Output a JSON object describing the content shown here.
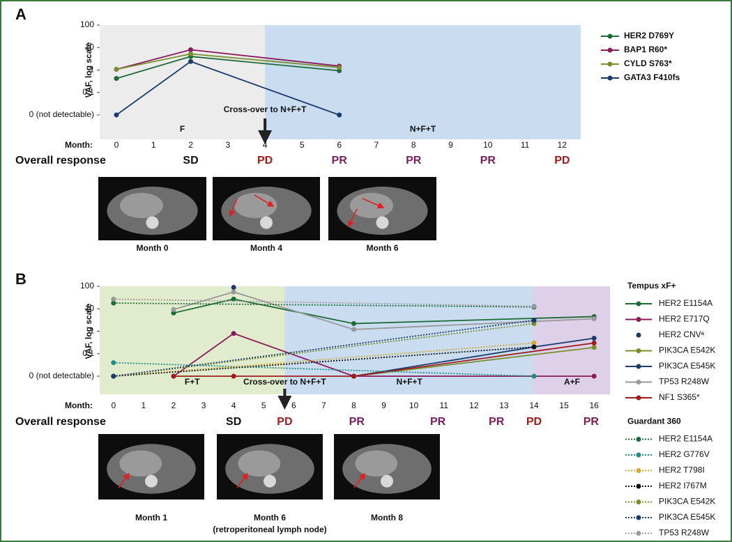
{
  "chart_data": [
    {
      "type": "line",
      "panel": "A",
      "y_label": "VAF, log scale",
      "x_label": "Month:",
      "response_label": "Overall response",
      "log_scale": true,
      "xlim": [
        -0.45,
        12.5
      ],
      "xticks": [
        0,
        1,
        2,
        3,
        4,
        5,
        6,
        7,
        8,
        9,
        10,
        11,
        12
      ],
      "ylim": [
        0,
        100
      ],
      "yticks": [
        100,
        10,
        1,
        0.1,
        {
          "value": 0,
          "label": "0 (not detectable)"
        }
      ],
      "phases": [
        {
          "label": "F",
          "start": -0.45,
          "end": 4,
          "color": "#ececec"
        },
        {
          "label": "N+F+T",
          "start": 4,
          "end": 12.5,
          "color": "#c9dcf0"
        }
      ],
      "crossover": {
        "label": "Cross-over to N+F+T",
        "x": 4
      },
      "responses": [
        {
          "label": "SD",
          "x": 2,
          "color": "#111111"
        },
        {
          "label": "PD",
          "x": 4,
          "color": "#a01c1c"
        },
        {
          "label": "PR",
          "x": 6,
          "color": "#7b1f5c"
        },
        {
          "label": "PR",
          "x": 8,
          "color": "#7b1f5c"
        },
        {
          "label": "PR",
          "x": 10,
          "color": "#7b1f5c"
        },
        {
          "label": "PD",
          "x": 12,
          "color": "#a01c1c"
        }
      ],
      "series_groups": [
        {
          "dash": false,
          "series": [
            {
              "name": "HER2 D769Y",
              "color": "#1d6a36",
              "x": [
                0,
                2,
                6
              ],
              "values": [
                0.42,
                4,
                0.93
              ]
            },
            {
              "name": "BAP1 R60*",
              "color": "#8b1a5a",
              "x": [
                0,
                2,
                6
              ],
              "values": [
                1.07,
                8,
                1.5
              ]
            },
            {
              "name": "CYLD S763*",
              "color": "#7a8f2a",
              "x": [
                0,
                2,
                6
              ],
              "values": [
                1.07,
                5.2,
                1.3
              ]
            },
            {
              "name": "GATA3 F410fs",
              "color": "#1a3a6b",
              "x": [
                0,
                2,
                6
              ],
              "values": [
                0,
                2.4,
                0
              ]
            }
          ]
        }
      ],
      "images": [
        {
          "caption": "Month 0"
        },
        {
          "caption": "Month 4"
        },
        {
          "caption": "Month 6"
        }
      ]
    },
    {
      "type": "line",
      "panel": "B",
      "y_label": "VAF, log scale",
      "x_label": "Month:",
      "response_label": "Overall response",
      "log_scale": true,
      "xlim": [
        -0.46,
        16.53
      ],
      "xticks": [
        0,
        1,
        2,
        3,
        4,
        5,
        6,
        7,
        8,
        9,
        10,
        11,
        12,
        13,
        14,
        15,
        16
      ],
      "ylim": [
        0,
        100
      ],
      "yticks": [
        100,
        10,
        1,
        0.1,
        {
          "value": 0,
          "label": "0 (not detectable)"
        }
      ],
      "phases": [
        {
          "label": "F+T",
          "start": -0.46,
          "end": 5.7,
          "color": "#e1ebcd"
        },
        {
          "label": "N+F+T",
          "start": 5.7,
          "end": 14,
          "color": "#c9dcf0"
        },
        {
          "label": "A+F",
          "start": 14,
          "end": 16.53,
          "color": "#ddd0e8"
        }
      ],
      "crossover": {
        "label": "Cross-over to N+F+T",
        "x": 5.7
      },
      "responses": [
        {
          "label": "SD",
          "x": 4,
          "color": "#111111"
        },
        {
          "label": "PD",
          "x": 5.7,
          "color": "#a01c1c"
        },
        {
          "label": "PR",
          "x": 8.1,
          "color": "#7b1f5c"
        },
        {
          "label": "PR",
          "x": 10.8,
          "color": "#7b1f5c"
        },
        {
          "label": "PR",
          "x": 12.75,
          "color": "#7b1f5c"
        },
        {
          "label": "PD",
          "x": 14,
          "color": "#a01c1c"
        },
        {
          "label": "PR",
          "x": 15.9,
          "color": "#7b1f5c"
        }
      ],
      "series_groups": [
        {
          "name": "Tempus xF+",
          "dash": false,
          "series": [
            {
              "name": "HER2 E1154A",
              "color": "#1d6a36",
              "x": [
                2,
                4,
                8,
                16
              ],
              "values": [
                6.5,
                27,
                2.2,
                4.5
              ]
            },
            {
              "name": "HER2 E717Q",
              "color": "#8b1a5a",
              "x": [
                2,
                4,
                8,
                16
              ],
              "values": [
                0,
                0.8,
                0,
                0
              ]
            },
            {
              "name": "HER2 CNVᵃ",
              "color": "#1a3a6b",
              "line": false,
              "x": [
                4
              ],
              "values": [
                90
              ]
            },
            {
              "name": "PIK3CA E542K",
              "color": "#7a8f2a",
              "x": [
                8,
                16
              ],
              "values": [
                0,
                0.19
              ]
            },
            {
              "name": "PIK3CA E545K",
              "color": "#1a3a6b",
              "x": [
                8,
                14,
                16
              ],
              "values": [
                0,
                0.2,
                0.49
              ]
            },
            {
              "name": "TP53 R248W",
              "color": "#999999",
              "x": [
                2,
                4,
                8,
                16
              ],
              "values": [
                9.3,
                56,
                1.2,
                3.6
              ]
            },
            {
              "name": "NF1 S365*",
              "color": "#a01c1c",
              "x": [
                2,
                4,
                8,
                16
              ],
              "values": [
                0,
                0,
                0,
                0.3
              ]
            }
          ]
        },
        {
          "name": "Guardant 360",
          "dash": true,
          "series": [
            {
              "name": "HER2 E1154A",
              "color": "#1d6a36",
              "x": [
                0,
                14
              ],
              "values": [
                18,
                12
              ]
            },
            {
              "name": "HER2 G776V",
              "color": "#1f8a8a",
              "x": [
                0,
                14
              ],
              "values": [
                0.04,
                0
              ]
            },
            {
              "name": "HER2 T798I",
              "color": "#d4a935",
              "x": [
                0,
                14
              ],
              "values": [
                0,
                0.3
              ]
            },
            {
              "name": "HER2 I767M",
              "color": "#111111",
              "x": [
                0,
                14
              ],
              "values": [
                0,
                0.2
              ]
            },
            {
              "name": "PIK3CA E542K",
              "color": "#7a8f2a",
              "x": [
                0,
                14
              ],
              "values": [
                0,
                2.2
              ]
            },
            {
              "name": "PIK3CA E545K",
              "color": "#1a3a6b",
              "x": [
                0,
                14
              ],
              "values": [
                0,
                3.1
              ]
            },
            {
              "name": "TP53 R248W",
              "color": "#999999",
              "x": [
                0,
                14
              ],
              "values": [
                27,
                13
              ]
            }
          ]
        }
      ],
      "images": [
        {
          "caption": "Month 1"
        },
        {
          "caption": "Month 6",
          "subcaption": "(retroperitoneal lymph node)"
        },
        {
          "caption": "Month 8"
        }
      ]
    }
  ]
}
